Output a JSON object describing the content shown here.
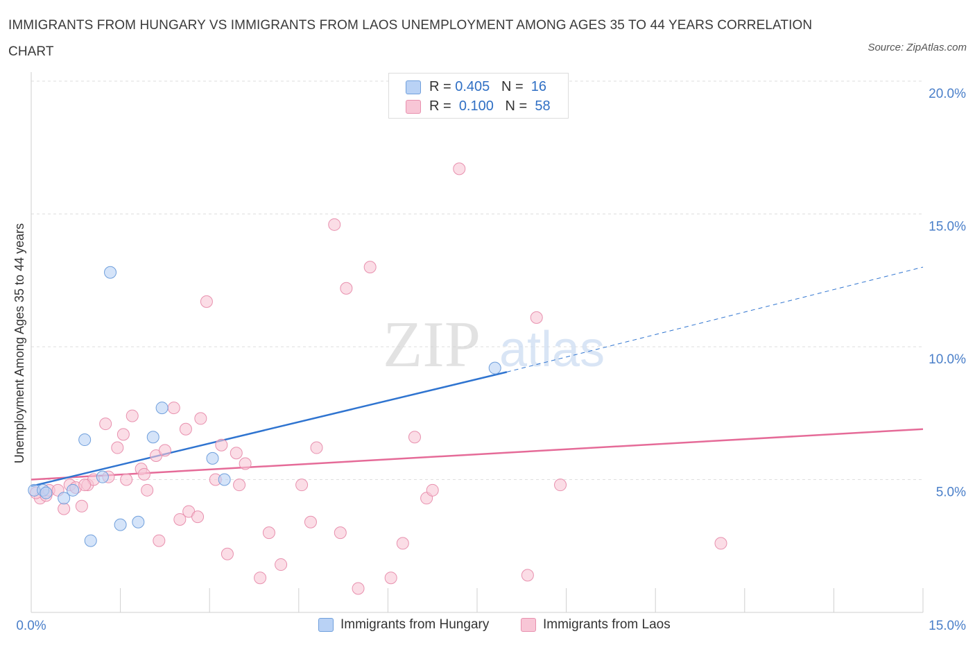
{
  "header": {
    "title": "IMMIGRANTS FROM HUNGARY VS IMMIGRANTS FROM LAOS UNEMPLOYMENT AMONG AGES 35 TO 44 YEARS CORRELATION CHART",
    "source": "Source: ZipAtlas.com"
  },
  "watermark": {
    "zip": "ZIP",
    "atlas": "atlas"
  },
  "legend": {
    "r_label": "R =",
    "n_label": "N =",
    "series": [
      {
        "name": "Immigrants from Hungary",
        "r": "0.405",
        "n": "16"
      },
      {
        "name": "Immigrants from Laos",
        "r": "0.100",
        "n": "58"
      }
    ]
  },
  "colors": {
    "hungary_fill": "#b9d2f5",
    "hungary_stroke": "#6f9fdc",
    "hungary_line": "#2f74d0",
    "laos_fill": "#f8c6d6",
    "laos_stroke": "#e890ae",
    "laos_line": "#e56b98",
    "axis_text": "#4a7fc9",
    "grid": "#dedede"
  },
  "chart_data": {
    "type": "scatter",
    "title": "IMMIGRANTS FROM HUNGARY VS IMMIGRANTS FROM LAOS UNEMPLOYMENT AMONG AGES 35 TO 44 YEARS CORRELATION CHART",
    "xlabel": "",
    "ylabel": "Unemployment Among Ages 35 to 44 years",
    "xlim": [
      0,
      15
    ],
    "ylim": [
      0,
      20
    ],
    "x_tick_labels": [
      "0.0%",
      "15.0%"
    ],
    "y_ticks": [
      {
        "value": 5,
        "label": "5.0%"
      },
      {
        "value": 10,
        "label": "10.0%"
      },
      {
        "value": 15,
        "label": "15.0%"
      },
      {
        "value": 20,
        "label": "20.0%"
      }
    ],
    "grid": "horizontal dashed",
    "legend_position": "top-center",
    "series": [
      {
        "name": "Immigrants from Hungary",
        "points": [
          [
            0.05,
            4.6
          ],
          [
            0.2,
            4.6
          ],
          [
            0.25,
            4.5
          ],
          [
            0.55,
            4.3
          ],
          [
            0.7,
            4.6
          ],
          [
            0.9,
            6.5
          ],
          [
            1.0,
            2.7
          ],
          [
            1.2,
            5.1
          ],
          [
            1.33,
            12.8
          ],
          [
            1.5,
            3.3
          ],
          [
            1.8,
            3.4
          ],
          [
            2.05,
            6.6
          ],
          [
            2.2,
            7.7
          ],
          [
            3.05,
            5.8
          ],
          [
            3.25,
            5.0
          ],
          [
            7.8,
            9.2
          ]
        ],
        "trend": {
          "x": [
            0,
            8.0
          ],
          "y": [
            4.75,
            9.05
          ],
          "dashed_extension": {
            "x": [
              8.0,
              15.0
            ],
            "y": [
              9.05,
              13.0
            ]
          }
        }
      },
      {
        "name": "Immigrants from Laos",
        "points": [
          [
            0.15,
            4.3
          ],
          [
            0.25,
            4.4
          ],
          [
            0.3,
            4.6
          ],
          [
            0.45,
            4.6
          ],
          [
            0.55,
            3.9
          ],
          [
            0.65,
            4.8
          ],
          [
            0.75,
            4.7
          ],
          [
            0.85,
            4.0
          ],
          [
            0.95,
            4.8
          ],
          [
            1.05,
            5.0
          ],
          [
            1.25,
            7.1
          ],
          [
            1.3,
            5.1
          ],
          [
            1.45,
            6.2
          ],
          [
            1.55,
            6.7
          ],
          [
            1.6,
            5.0
          ],
          [
            1.7,
            7.4
          ],
          [
            1.85,
            5.4
          ],
          [
            1.9,
            5.2
          ],
          [
            1.95,
            4.6
          ],
          [
            2.1,
            5.9
          ],
          [
            2.15,
            2.7
          ],
          [
            2.25,
            6.1
          ],
          [
            2.4,
            7.7
          ],
          [
            2.5,
            3.5
          ],
          [
            2.6,
            6.9
          ],
          [
            2.65,
            3.8
          ],
          [
            2.8,
            3.6
          ],
          [
            2.85,
            7.3
          ],
          [
            2.95,
            11.7
          ],
          [
            3.1,
            5.0
          ],
          [
            3.2,
            6.3
          ],
          [
            3.3,
            2.2
          ],
          [
            3.45,
            6.0
          ],
          [
            3.5,
            4.8
          ],
          [
            3.6,
            5.6
          ],
          [
            3.85,
            1.3
          ],
          [
            4.0,
            3.0
          ],
          [
            4.2,
            1.8
          ],
          [
            4.55,
            4.8
          ],
          [
            4.7,
            3.4
          ],
          [
            4.8,
            6.2
          ],
          [
            5.1,
            14.6
          ],
          [
            5.2,
            3.0
          ],
          [
            5.3,
            12.2
          ],
          [
            5.5,
            0.9
          ],
          [
            5.7,
            13.0
          ],
          [
            6.05,
            1.3
          ],
          [
            6.25,
            2.6
          ],
          [
            6.45,
            6.6
          ],
          [
            6.65,
            4.3
          ],
          [
            6.75,
            4.6
          ],
          [
            7.2,
            16.7
          ],
          [
            8.35,
            1.4
          ],
          [
            8.5,
            11.1
          ],
          [
            8.9,
            4.8
          ],
          [
            11.6,
            2.6
          ],
          [
            0.08,
            4.5
          ],
          [
            0.9,
            4.8
          ]
        ],
        "trend": {
          "x": [
            0,
            15.0
          ],
          "y": [
            5.0,
            6.9
          ]
        }
      }
    ]
  }
}
